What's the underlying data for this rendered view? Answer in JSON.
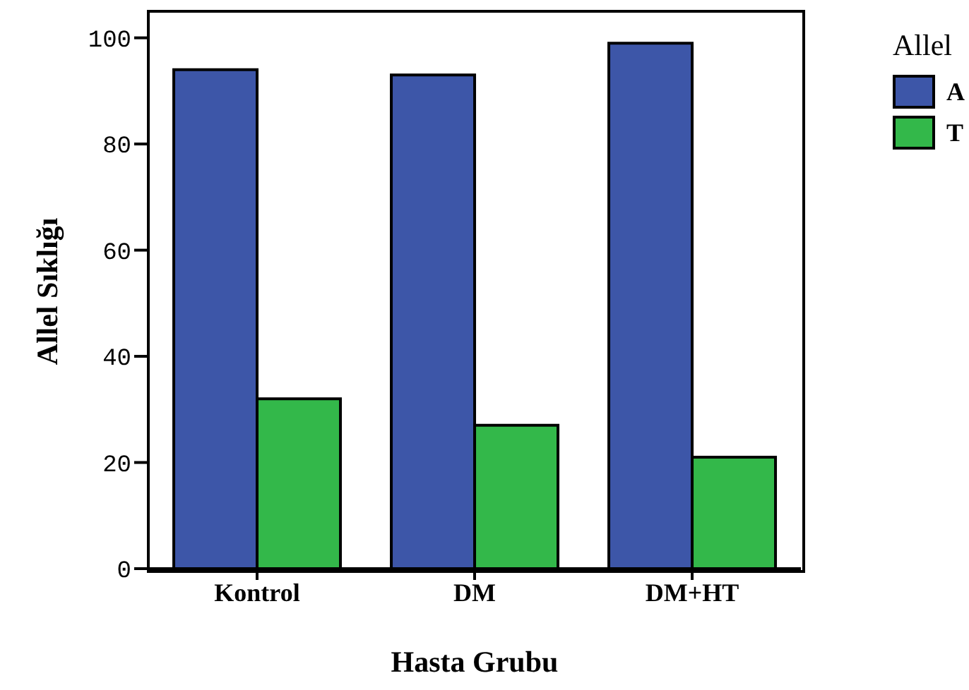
{
  "chart_data": {
    "type": "bar",
    "xlabel": "Hasta Grubu",
    "ylabel": "Allel Sıklığı",
    "legend_title": "Allel",
    "categories": [
      "Kontrol",
      "DM",
      "DM+HT"
    ],
    "series": [
      {
        "name": "A",
        "color": "#3d56a8",
        "values": [
          94,
          93,
          99
        ]
      },
      {
        "name": "T",
        "color": "#33b84a",
        "values": [
          32,
          27,
          21
        ]
      }
    ],
    "ylim": [
      0,
      105
    ],
    "yticks": [
      0,
      20,
      40,
      60,
      80,
      100
    ],
    "grid": false,
    "legend": "top right"
  }
}
